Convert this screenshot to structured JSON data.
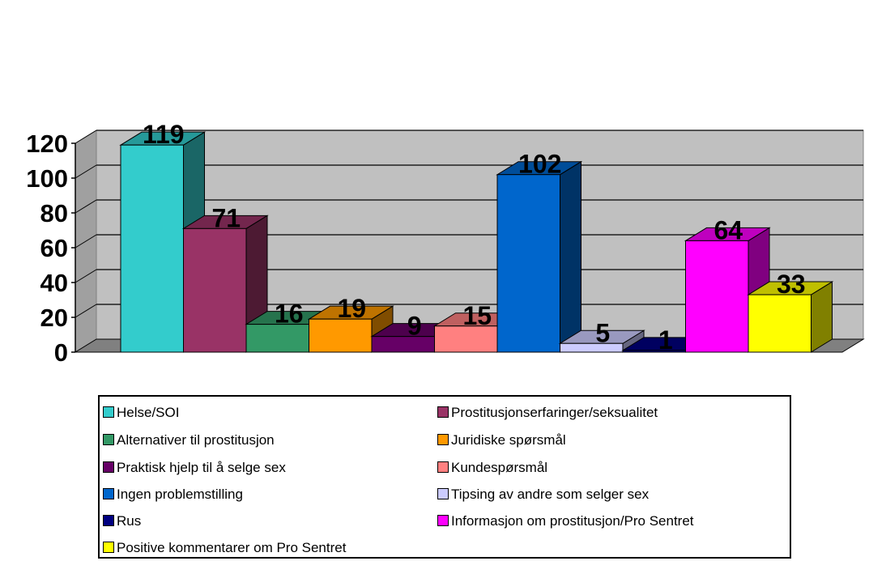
{
  "chart_data": {
    "type": "bar",
    "title": "",
    "xlabel": "",
    "ylabel": "",
    "ylim": [
      0,
      120
    ],
    "y_ticks": [
      "0",
      "20",
      "40",
      "60",
      "80",
      "100",
      "120"
    ],
    "grid": true,
    "legend_position": "bottom",
    "series": [
      {
        "name": "Helse/SOI",
        "value": 119,
        "label": "119",
        "color": "#33CCCC"
      },
      {
        "name": "Prostitusjonserfaringer/seksualitet",
        "value": 71,
        "label": "71",
        "color": "#993366"
      },
      {
        "name": "Alternativer til prostitusjon",
        "value": 16,
        "label": "16",
        "color": "#339966"
      },
      {
        "name": "Juridiske spørsmål",
        "value": 19,
        "label": "19",
        "color": "#FF9900"
      },
      {
        "name": "Praktisk hjelp til å selge sex",
        "value": 9,
        "label": "9",
        "color": "#660066"
      },
      {
        "name": "Kundespørsmål",
        "value": 15,
        "label": "15",
        "color": "#FF8080"
      },
      {
        "name": "Ingen problemstilling",
        "value": 102,
        "label": "102",
        "color": "#0066CC"
      },
      {
        "name": "Tipsing av andre som selger sex",
        "value": 5,
        "label": "5",
        "color": "#CCCCFF"
      },
      {
        "name": "Rus",
        "value": 1,
        "label": "1",
        "color": "#000080"
      },
      {
        "name": "Informasjon om prostitusjon/Pro Sentret",
        "value": 64,
        "label": "64",
        "color": "#FF00FF"
      },
      {
        "name": "Positive kommentarer om Pro Sentret",
        "value": 33,
        "label": "33",
        "color": "#FFFF00"
      }
    ]
  }
}
